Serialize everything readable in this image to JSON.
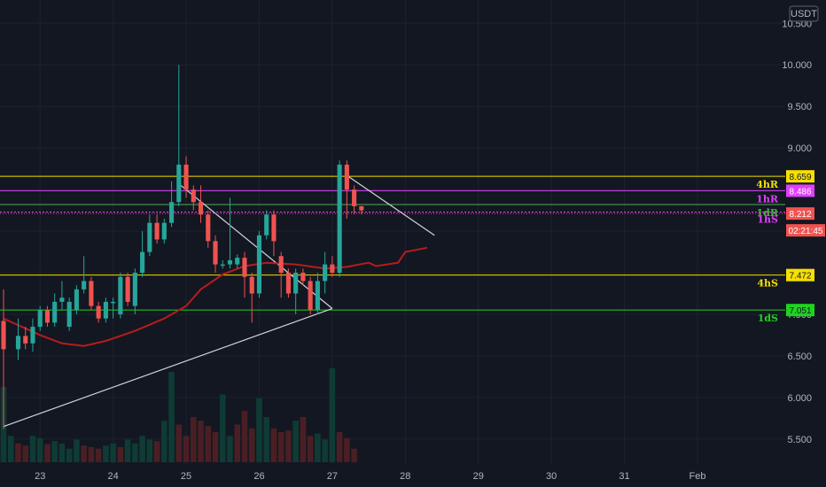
{
  "chart_data": {
    "type": "candlestick",
    "currency": "USDT",
    "y_ticks": [
      "10.500",
      "10.000",
      "9.500",
      "9.000",
      "8.500",
      "8.000",
      "7.500",
      "7.000",
      "6.500",
      "6.000",
      "5.500"
    ],
    "x_ticks": [
      "23",
      "24",
      "25",
      "26",
      "27",
      "28",
      "29",
      "30",
      "31",
      "Feb"
    ],
    "ylim": [
      5.2,
      10.78
    ],
    "x_domain": [
      0,
      107.5
    ],
    "x_tick_positions": [
      5.0,
      15.0,
      25.0,
      35.0,
      45.0,
      55.0,
      65.0,
      75.0,
      85.0,
      95.0
    ],
    "candles": [
      [
        0,
        6.92,
        6.58,
        7.3,
        5.62
      ],
      [
        2,
        6.58,
        6.74,
        6.95,
        6.45
      ],
      [
        3,
        6.74,
        6.65,
        6.85,
        6.58
      ],
      [
        4,
        6.65,
        6.85,
        6.95,
        6.55
      ],
      [
        5,
        6.85,
        7.05,
        7.1,
        6.8
      ],
      [
        6,
        7.05,
        6.9,
        7.1,
        6.85
      ],
      [
        7,
        6.9,
        7.15,
        7.25,
        6.85
      ],
      [
        8,
        7.15,
        7.2,
        7.4,
        7.05
      ],
      [
        9,
        6.85,
        7.15,
        7.2,
        6.8
      ],
      [
        10,
        7.05,
        7.3,
        7.35,
        7.0
      ],
      [
        11,
        7.3,
        7.4,
        7.7,
        7.25
      ],
      [
        12,
        7.4,
        7.1,
        7.45,
        7.05
      ],
      [
        13,
        7.1,
        6.95,
        7.15,
        6.9
      ],
      [
        14,
        6.95,
        7.15,
        7.2,
        6.9
      ],
      [
        15,
        7.15,
        7.15,
        7.2,
        6.95
      ],
      [
        16,
        7.0,
        7.45,
        7.5,
        6.95
      ],
      [
        17,
        7.45,
        7.15,
        7.5,
        7.1
      ],
      [
        18,
        7.1,
        7.5,
        7.55,
        7.0
      ],
      [
        19,
        7.5,
        7.75,
        8.0,
        7.45
      ],
      [
        20,
        7.75,
        8.1,
        8.2,
        7.7
      ],
      [
        21,
        8.1,
        7.9,
        8.2,
        7.85
      ],
      [
        22,
        7.9,
        8.1,
        8.15,
        7.85
      ],
      [
        23,
        8.1,
        8.35,
        8.6,
        8.05
      ],
      [
        24,
        8.35,
        8.8,
        10.0,
        8.3
      ],
      [
        25,
        8.8,
        8.5,
        8.9,
        8.4
      ],
      [
        26,
        8.5,
        8.35,
        8.55,
        8.25
      ],
      [
        27,
        8.35,
        8.2,
        8.55,
        8.1
      ],
      [
        28,
        8.2,
        7.88,
        8.25,
        7.8
      ],
      [
        29,
        7.88,
        7.6,
        7.95,
        7.5
      ],
      [
        30,
        7.6,
        7.6,
        7.65,
        7.55
      ],
      [
        31,
        7.6,
        7.65,
        8.4,
        7.55
      ],
      [
        32,
        7.6,
        7.68,
        7.72,
        7.55
      ],
      [
        33,
        7.68,
        7.45,
        7.75,
        7.2
      ],
      [
        34,
        7.45,
        7.25,
        7.5,
        6.9
      ],
      [
        35,
        7.25,
        7.95,
        8.0,
        7.2
      ],
      [
        36,
        7.95,
        8.2,
        8.25,
        7.9
      ],
      [
        37,
        8.2,
        7.88,
        8.25,
        7.7
      ],
      [
        38,
        7.7,
        7.5,
        7.75,
        7.2
      ],
      [
        39,
        7.5,
        7.25,
        7.55,
        7.2
      ],
      [
        40,
        7.25,
        7.5,
        7.55,
        7.0
      ],
      [
        41,
        7.5,
        7.4,
        7.55,
        7.35
      ],
      [
        42,
        7.4,
        7.05,
        7.45,
        7.0
      ],
      [
        43,
        7.05,
        7.4,
        7.5,
        7.0
      ],
      [
        44,
        7.4,
        7.6,
        7.75,
        7.25
      ],
      [
        45,
        7.6,
        7.5,
        7.7,
        7.45
      ],
      [
        46,
        7.5,
        8.8,
        8.85,
        7.45
      ],
      [
        47,
        8.8,
        8.5,
        8.85,
        8.15
      ],
      [
        48,
        8.5,
        8.3,
        8.55,
        8.2
      ],
      [
        49,
        8.3,
        8.25,
        8.3,
        8.2
      ]
    ],
    "ma_line": [
      [
        0,
        6.95
      ],
      [
        5,
        6.75
      ],
      [
        8,
        6.65
      ],
      [
        11,
        6.62
      ],
      [
        14,
        6.68
      ],
      [
        18,
        6.8
      ],
      [
        22,
        6.95
      ],
      [
        25,
        7.1
      ],
      [
        27,
        7.3
      ],
      [
        30,
        7.48
      ],
      [
        33,
        7.58
      ],
      [
        36,
        7.62
      ],
      [
        40,
        7.6
      ],
      [
        44,
        7.55
      ],
      [
        47,
        7.57
      ],
      [
        50,
        7.62
      ],
      [
        51,
        7.58
      ],
      [
        54,
        7.62
      ],
      [
        55,
        7.75
      ],
      [
        58,
        7.8
      ]
    ],
    "trend_lines": [
      {
        "from": [
          0,
          5.65
        ],
        "to": [
          45,
          7.07
        ],
        "color": "#d1d4dc"
      },
      {
        "from": [
          24,
          8.57
        ],
        "to": [
          45,
          7.07
        ],
        "color": "#d1d4dc"
      },
      {
        "from": [
          47,
          8.67
        ],
        "to": [
          59,
          7.95
        ],
        "color": "#d1d4dc"
      }
    ],
    "levels": [
      {
        "name": "4hR",
        "value": 8.659,
        "badge": "8.659",
        "color": "#f5e000",
        "badge_text": "#131722"
      },
      {
        "name": "1hR",
        "value": 8.486,
        "badge": "8.486",
        "color": "#e040fb",
        "badge_text": "#ffffff"
      },
      {
        "name": "1dR",
        "value": 8.32,
        "badge": "",
        "color": "#4caf50",
        "badge_text": "#ffffff"
      },
      {
        "name": "1hS",
        "value": 8.23,
        "badge": "",
        "color": "#e040fb",
        "badge_text": "#ffffff"
      },
      {
        "name": "4hS",
        "value": 7.472,
        "badge": "7.472",
        "color": "#f5e000",
        "badge_text": "#131722"
      },
      {
        "name": "1dS",
        "value": 7.051,
        "badge": "7.051",
        "color": "#1fd31f",
        "badge_text": "#131722"
      }
    ],
    "last_price": {
      "value": 8.212,
      "label": "8.212",
      "countdown": "02:21:45",
      "color": "#f05350"
    },
    "volumes": [
      [
        0,
        1.0,
        "g"
      ],
      [
        1,
        0.35,
        "g"
      ],
      [
        2,
        0.25,
        "r"
      ],
      [
        3,
        0.22,
        "r"
      ],
      [
        4,
        0.35,
        "g"
      ],
      [
        5,
        0.32,
        "g"
      ],
      [
        6,
        0.24,
        "r"
      ],
      [
        7,
        0.28,
        "g"
      ],
      [
        8,
        0.25,
        "g"
      ],
      [
        9,
        0.18,
        "g"
      ],
      [
        10,
        0.3,
        "g"
      ],
      [
        11,
        0.22,
        "r"
      ],
      [
        12,
        0.2,
        "r"
      ],
      [
        13,
        0.18,
        "r"
      ],
      [
        14,
        0.22,
        "g"
      ],
      [
        15,
        0.25,
        "g"
      ],
      [
        16,
        0.2,
        "r"
      ],
      [
        17,
        0.3,
        "g"
      ],
      [
        18,
        0.25,
        "g"
      ],
      [
        19,
        0.35,
        "g"
      ],
      [
        20,
        0.3,
        "g"
      ],
      [
        21,
        0.28,
        "r"
      ],
      [
        22,
        0.55,
        "g"
      ],
      [
        23,
        1.2,
        "g"
      ],
      [
        24,
        0.5,
        "r"
      ],
      [
        25,
        0.35,
        "r"
      ],
      [
        26,
        0.6,
        "r"
      ],
      [
        27,
        0.55,
        "r"
      ],
      [
        28,
        0.48,
        "r"
      ],
      [
        29,
        0.4,
        "r"
      ],
      [
        30,
        0.9,
        "g"
      ],
      [
        31,
        0.35,
        "g"
      ],
      [
        32,
        0.5,
        "r"
      ],
      [
        33,
        0.68,
        "r"
      ],
      [
        34,
        0.45,
        "r"
      ],
      [
        35,
        0.85,
        "g"
      ],
      [
        36,
        0.6,
        "g"
      ],
      [
        37,
        0.45,
        "r"
      ],
      [
        38,
        0.4,
        "r"
      ],
      [
        39,
        0.42,
        "r"
      ],
      [
        40,
        0.55,
        "g"
      ],
      [
        41,
        0.6,
        "r"
      ],
      [
        42,
        0.35,
        "r"
      ],
      [
        43,
        0.38,
        "g"
      ],
      [
        44,
        0.3,
        "g"
      ],
      [
        45,
        1.25,
        "g"
      ],
      [
        46,
        0.4,
        "r"
      ],
      [
        47,
        0.32,
        "r"
      ],
      [
        48,
        0.18,
        "r"
      ]
    ]
  }
}
